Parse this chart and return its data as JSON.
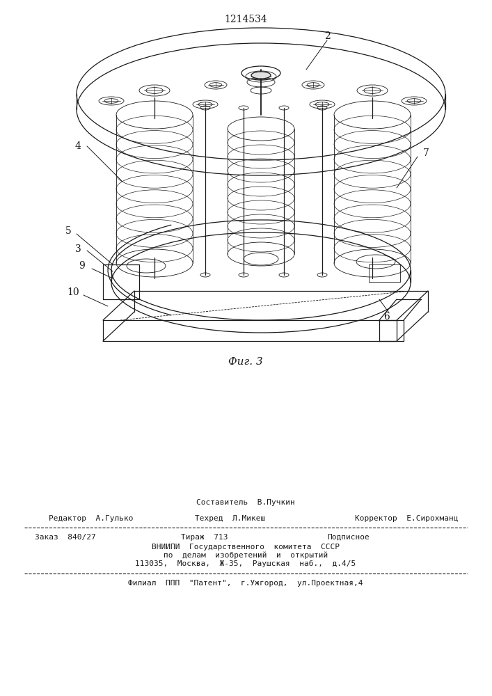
{
  "patent_number": "1214534",
  "fig_caption": "Фиг. 3",
  "bg_color": "#ffffff",
  "line_color": "#1a1a1a",
  "footer": {
    "sestavitel_label": "Составитель  В.Пучкин",
    "redaktor_label": "Редактор  А.Гулько",
    "tehred_label": "Техред  Л.Микеш",
    "korrektor_label": "Корректор  Е.Сирохманц",
    "zakaz": "Заказ  840/27",
    "tirazh": "Тираж  713",
    "podpisnoe": "Подписное",
    "vniip_line1": "ВНИИПИ  Государственного  комитета  СССР",
    "vniip_line2": "по  делам  изобретений  и  открытий",
    "vniip_line3": "113035,  Москва,  Ж-35,  Раушская  наб.,  д.4/5",
    "filial": "Филиал  ППП  \"Патент\",  г.Ужгород,  ул.Проектная,4"
  }
}
